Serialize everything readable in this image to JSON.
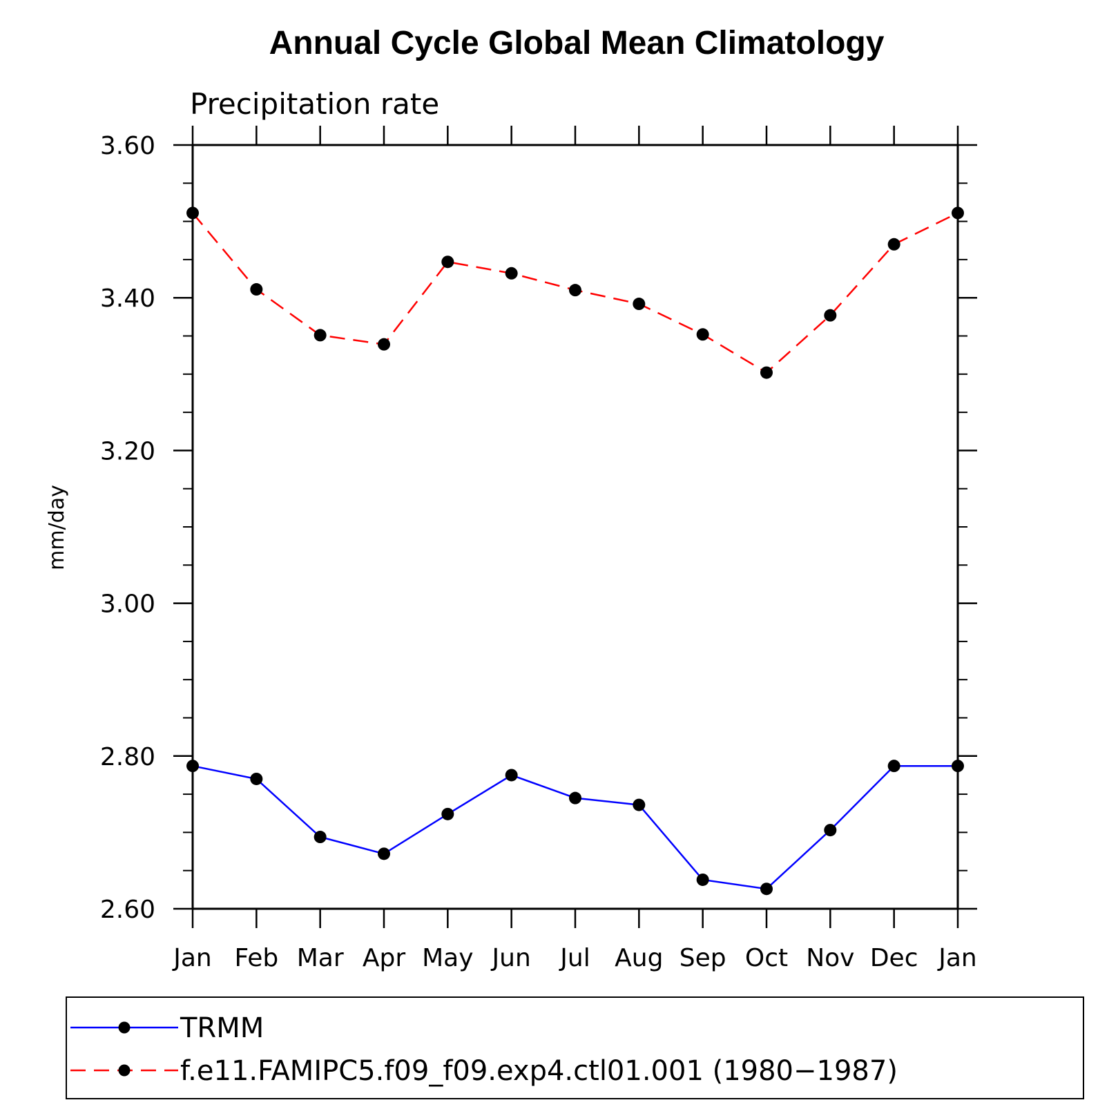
{
  "chart_data": {
    "type": "line",
    "title": "Annual Cycle Global Mean Climatology",
    "subtitle": "Precipitation rate",
    "ylabel": "mm/day",
    "xlabel": "",
    "categories": [
      "Jan",
      "Feb",
      "Mar",
      "Apr",
      "May",
      "Jun",
      "Jul",
      "Aug",
      "Sep",
      "Oct",
      "Nov",
      "Dec",
      "Jan"
    ],
    "ylim": [
      2.6,
      3.6
    ],
    "yticks": [
      "2.60",
      "2.80",
      "3.00",
      "3.20",
      "3.40",
      "3.60"
    ],
    "legend_position": "bottom",
    "series": [
      {
        "name": "TRMM",
        "color": "#0000ff",
        "dash": "solid",
        "values": [
          2.787,
          2.77,
          2.694,
          2.672,
          2.724,
          2.775,
          2.745,
          2.736,
          2.638,
          2.626,
          2.703,
          2.787,
          2.787
        ]
      },
      {
        "name": "f.e11.FAMIPC5.f09_f09.exp4.ctl01.001 (1980−1987)",
        "color": "#ff0000",
        "dash": "dashed",
        "values": [
          3.511,
          3.411,
          3.351,
          3.339,
          3.447,
          3.432,
          3.41,
          3.392,
          3.352,
          3.302,
          3.377,
          3.47,
          3.511
        ]
      }
    ]
  }
}
